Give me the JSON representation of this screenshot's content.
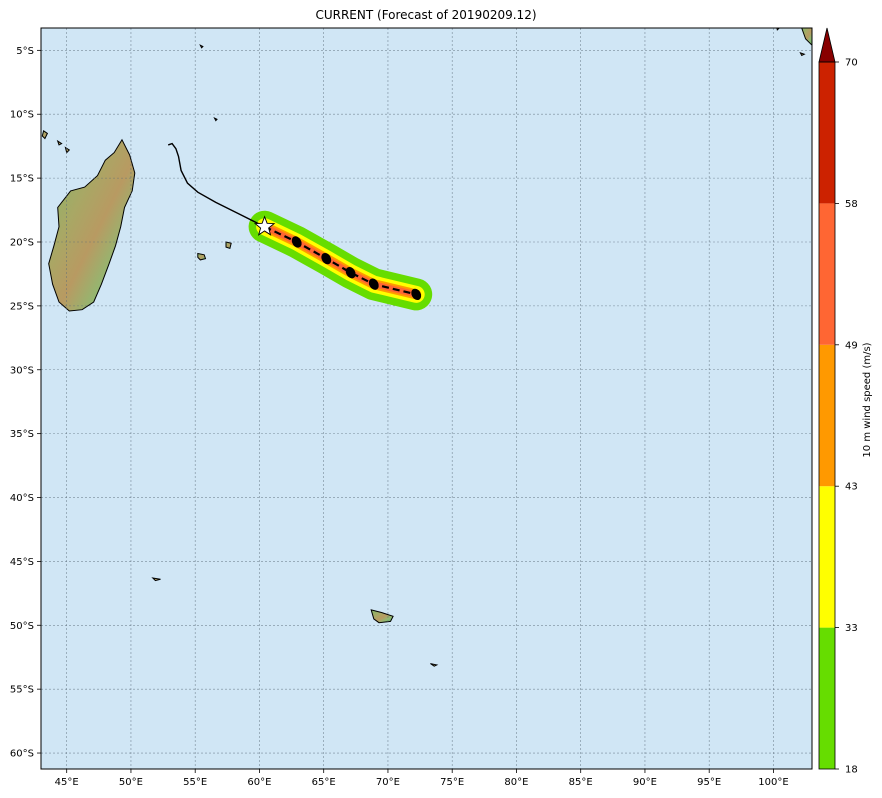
{
  "title": "CURRENT (Forecast of 20190209.12)",
  "map": {
    "lon_range": [
      43,
      103
    ],
    "lat_range": [
      -61.25,
      -3.25
    ],
    "lon_ticks": [
      45,
      50,
      55,
      60,
      65,
      70,
      75,
      80,
      85,
      90,
      95,
      100
    ],
    "lon_tick_labels": [
      "45°E",
      "50°E",
      "55°E",
      "60°E",
      "65°E",
      "70°E",
      "75°E",
      "80°E",
      "85°E",
      "90°E",
      "95°E",
      "100°E"
    ],
    "lat_ticks": [
      -5,
      -10,
      -15,
      -20,
      -25,
      -30,
      -35,
      -40,
      -45,
      -50,
      -55,
      -60
    ],
    "lat_tick_labels": [
      "5°S",
      "10°S",
      "15°S",
      "20°S",
      "25°S",
      "30°S",
      "35°S",
      "40°S",
      "45°S",
      "50°S",
      "55°S",
      "60°S"
    ],
    "grid": true,
    "ocean_color": "#d0e6f5"
  },
  "colorbar": {
    "label": "10 m wind speed (m/s)",
    "bounds": [
      18,
      33,
      43,
      49,
      58,
      70
    ],
    "tick_labels": [
      "18",
      "33",
      "43",
      "49",
      "58",
      "70"
    ],
    "colors": [
      "#66dd00",
      "#ffff00",
      "#ff9900",
      "#ff6633",
      "#cc2200"
    ],
    "extend_color": "#880000"
  },
  "chart_data": {
    "type": "map",
    "title": "CURRENT (Forecast of 20190209.12)",
    "past_track": [
      {
        "lon": 52.9,
        "lat": -12.4
      },
      {
        "lon": 53.2,
        "lat": -12.3
      },
      {
        "lon": 53.5,
        "lat": -12.7
      },
      {
        "lon": 53.7,
        "lat": -13.3
      },
      {
        "lon": 53.9,
        "lat": -14.4
      },
      {
        "lon": 54.4,
        "lat": -15.4
      },
      {
        "lon": 55.2,
        "lat": -16.1
      },
      {
        "lon": 56.6,
        "lat": -16.9
      },
      {
        "lon": 58.4,
        "lat": -17.8
      },
      {
        "lon": 60.4,
        "lat": -18.8
      }
    ],
    "current_position": {
      "lon": 60.4,
      "lat": -18.8
    },
    "forecast_track": [
      {
        "lon": 60.4,
        "lat": -18.8
      },
      {
        "lon": 62.9,
        "lat": -20.0
      },
      {
        "lon": 65.2,
        "lat": -21.3
      },
      {
        "lon": 67.1,
        "lat": -22.4
      },
      {
        "lon": 68.9,
        "lat": -23.3
      },
      {
        "lon": 72.2,
        "lat": -24.1
      }
    ],
    "forecast_points": [
      {
        "lon": 62.9,
        "lat": -20.0
      },
      {
        "lon": 65.2,
        "lat": -21.3
      },
      {
        "lon": 67.1,
        "lat": -22.4
      },
      {
        "lon": 68.9,
        "lat": -23.3
      },
      {
        "lon": 72.2,
        "lat": -24.1
      }
    ],
    "wind_swath": [
      {
        "min_wind": 18,
        "color": "#66dd00"
      },
      {
        "min_wind": 33,
        "color": "#ffff00"
      },
      {
        "min_wind": 43,
        "color": "#ff9900"
      },
      {
        "min_wind": 49,
        "color": "#ff6633"
      }
    ],
    "land": [
      {
        "name": "Madagascar",
        "points": [
          [
            49.3,
            -12.0
          ],
          [
            49.9,
            -13.2
          ],
          [
            50.3,
            -14.6
          ],
          [
            50.1,
            -16.0
          ],
          [
            49.5,
            -17.3
          ],
          [
            49.2,
            -18.8
          ],
          [
            48.8,
            -20.3
          ],
          [
            48.3,
            -21.7
          ],
          [
            47.7,
            -23.3
          ],
          [
            47.1,
            -24.7
          ],
          [
            46.2,
            -25.3
          ],
          [
            45.2,
            -25.4
          ],
          [
            44.4,
            -24.7
          ],
          [
            43.9,
            -23.3
          ],
          [
            43.6,
            -21.7
          ],
          [
            44.0,
            -20.3
          ],
          [
            44.4,
            -18.8
          ],
          [
            44.3,
            -17.3
          ],
          [
            45.3,
            -16.0
          ],
          [
            46.4,
            -15.7
          ],
          [
            47.4,
            -14.8
          ],
          [
            48.0,
            -13.6
          ],
          [
            48.7,
            -13.0
          ]
        ]
      },
      {
        "name": "Reunion",
        "points": [
          [
            55.2,
            -20.9
          ],
          [
            55.7,
            -21.0
          ],
          [
            55.8,
            -21.3
          ],
          [
            55.4,
            -21.4
          ],
          [
            55.2,
            -21.2
          ]
        ]
      },
      {
        "name": "Mauritius",
        "points": [
          [
            57.4,
            -20.0
          ],
          [
            57.8,
            -20.1
          ],
          [
            57.7,
            -20.5
          ],
          [
            57.4,
            -20.4
          ]
        ]
      },
      {
        "name": "Kerguelen",
        "points": [
          [
            68.7,
            -48.8
          ],
          [
            69.5,
            -49.0
          ],
          [
            70.4,
            -49.3
          ],
          [
            70.2,
            -49.7
          ],
          [
            69.3,
            -49.8
          ],
          [
            68.9,
            -49.5
          ]
        ]
      },
      {
        "name": "Heard",
        "points": [
          [
            73.3,
            -53.0
          ],
          [
            73.8,
            -53.1
          ],
          [
            73.6,
            -53.2
          ]
        ]
      },
      {
        "name": "Crozet",
        "points": [
          [
            51.7,
            -46.3
          ],
          [
            52.3,
            -46.4
          ],
          [
            51.9,
            -46.5
          ]
        ]
      },
      {
        "name": "Comoros-1",
        "points": [
          [
            43.2,
            -11.3
          ],
          [
            43.5,
            -11.5
          ],
          [
            43.3,
            -11.9
          ],
          [
            43.1,
            -11.7
          ]
        ]
      },
      {
        "name": "Comoros-2",
        "points": [
          [
            44.3,
            -12.1
          ],
          [
            44.6,
            -12.3
          ],
          [
            44.4,
            -12.4
          ]
        ]
      },
      {
        "name": "Comoros-3",
        "points": [
          [
            44.9,
            -12.6
          ],
          [
            45.2,
            -12.8
          ],
          [
            45.0,
            -13.0
          ]
        ]
      },
      {
        "name": "Agalega",
        "points": [
          [
            56.5,
            -10.3
          ],
          [
            56.7,
            -10.4
          ],
          [
            56.6,
            -10.5
          ]
        ]
      },
      {
        "name": "Seychelles",
        "points": [
          [
            55.4,
            -4.6
          ],
          [
            55.6,
            -4.7
          ],
          [
            55.5,
            -4.8
          ]
        ]
      },
      {
        "name": "Sri-Lanka-tip",
        "points": [
          [
            102.2,
            -3.25
          ],
          [
            103.0,
            -3.25
          ],
          [
            103.0,
            -4.6
          ],
          [
            102.5,
            -4.1
          ]
        ]
      },
      {
        "name": "Sumatra-speck",
        "points": [
          [
            100.2,
            -2.9
          ],
          [
            100.5,
            -3.2
          ],
          [
            100.3,
            -3.4
          ]
        ]
      },
      {
        "name": "Islet",
        "points": [
          [
            102.1,
            -5.2
          ],
          [
            102.4,
            -5.3
          ],
          [
            102.2,
            -5.4
          ]
        ]
      }
    ]
  }
}
